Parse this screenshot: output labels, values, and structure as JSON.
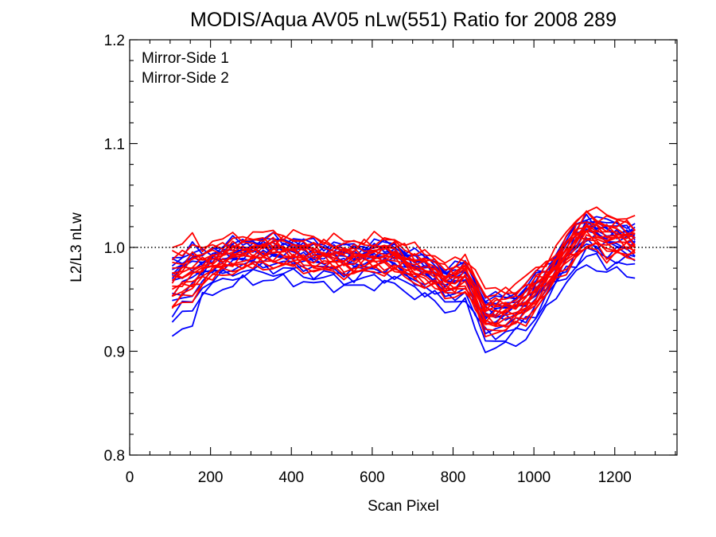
{
  "chart_data": {
    "type": "line",
    "title": "MODIS/Aqua AV05 nLw(551) Ratio for 2008 289",
    "xlabel": "Scan Pixel",
    "ylabel": "L2/L3 nLw",
    "xlim": [
      0,
      1354
    ],
    "ylim": [
      0.8,
      1.2
    ],
    "x_ticks": [
      "0",
      "200",
      "400",
      "600",
      "800",
      "1000",
      "1200"
    ],
    "y_ticks": [
      "0.8",
      "0.9",
      "1.0",
      "1.1",
      "1.2"
    ],
    "reference_line": 1.0,
    "grid": false,
    "legend_position": "top-left",
    "legend": [
      {
        "label": "Mirror-Side 1",
        "color": "#0000ff"
      },
      {
        "label": "Mirror-Side 2",
        "color": "#ff0000"
      }
    ],
    "x": [
      105,
      130,
      155,
      180,
      205,
      230,
      255,
      280,
      305,
      330,
      355,
      380,
      405,
      430,
      455,
      480,
      505,
      530,
      555,
      580,
      605,
      630,
      655,
      680,
      705,
      730,
      755,
      780,
      805,
      830,
      855,
      880,
      905,
      930,
      955,
      980,
      1005,
      1030,
      1055,
      1080,
      1105,
      1130,
      1155,
      1180,
      1205,
      1230,
      1250
    ],
    "mean_profile": [
      0.965,
      0.97,
      0.975,
      0.98,
      0.985,
      0.988,
      0.991,
      0.993,
      0.994,
      0.995,
      0.995,
      0.995,
      0.994,
      0.993,
      0.991,
      0.99,
      0.989,
      0.988,
      0.988,
      0.989,
      0.99,
      0.991,
      0.99,
      0.985,
      0.98,
      0.978,
      0.974,
      0.966,
      0.967,
      0.973,
      0.955,
      0.935,
      0.935,
      0.938,
      0.94,
      0.947,
      0.957,
      0.968,
      0.98,
      0.994,
      1.005,
      1.015,
      1.012,
      1.008,
      1.008,
      1.006,
      1.004
    ],
    "series": [
      {
        "name": "Mirror-Side 1",
        "color": "#0000ff",
        "offsets": [
          0.0,
          0.003,
          -0.004,
          0.006,
          -0.008,
          0.01,
          -0.014,
          0.015,
          -0.02,
          0.013,
          0.018,
          -0.026,
          -0.035,
          0.007
        ]
      },
      {
        "name": "Mirror-Side 2",
        "color": "#ff0000",
        "offsets": [
          0.001,
          -0.002,
          0.004,
          -0.005,
          0.008,
          -0.01,
          0.012,
          -0.012,
          0.016,
          0.02,
          0.025,
          -0.018,
          0.005,
          -0.006,
          0.003,
          0.011,
          -0.015
        ]
      }
    ]
  }
}
